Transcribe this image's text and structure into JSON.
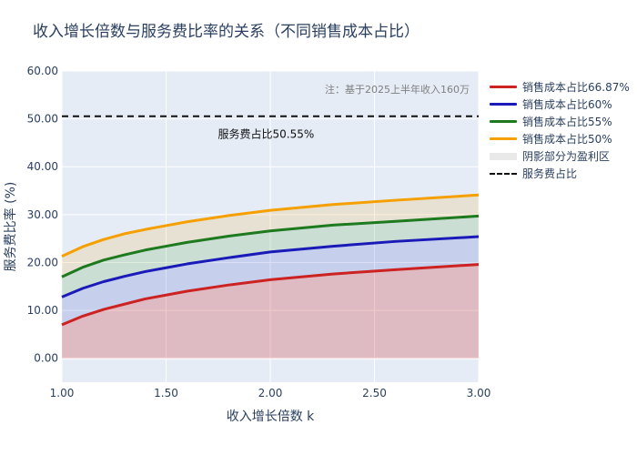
{
  "title": "收入增长倍数与服务费比率的关系（不同销售成本占比）",
  "colors": {
    "plot_bg": "#e5ecf6",
    "grid": "#ffffff",
    "line_6687": "#cc2222",
    "line_60": "#1a1ab8",
    "line_55": "#1e7a1e",
    "line_50": "#f5a000",
    "reference": "#111111"
  },
  "legend": [
    {
      "label": "销售成本占比66.87%",
      "kind": "line",
      "color": "#cc2222"
    },
    {
      "label": "销售成本占比60%",
      "kind": "line",
      "color": "#1a1ab8"
    },
    {
      "label": "销售成本占比55%",
      "kind": "line",
      "color": "#1e7a1e"
    },
    {
      "label": "销售成本占比50%",
      "kind": "line",
      "color": "#f5a000"
    },
    {
      "label": "阴影部分为盈利区",
      "kind": "fill",
      "color": "#e9e9e9"
    },
    {
      "label": "服务费占比",
      "kind": "dash",
      "color": "#111111"
    }
  ],
  "chart_data": {
    "type": "line",
    "xlabel": "收入增长倍数 k",
    "ylabel": "服务费比率 (%)",
    "xlim": [
      1.0,
      3.0
    ],
    "ylim": [
      -5,
      60
    ],
    "x_ticks": [
      "1.00",
      "1.50",
      "2.00",
      "2.50",
      "3.00"
    ],
    "y_ticks": [
      "0.00",
      "10.00",
      "20.00",
      "30.00",
      "40.00",
      "50.00",
      "60.00"
    ],
    "y_tick_values": [
      0,
      10,
      20,
      30,
      40,
      50,
      60
    ],
    "x_tick_values": [
      1.0,
      1.5,
      2.0,
      2.5,
      3.0
    ],
    "x": [
      1.0,
      1.1,
      1.2,
      1.3,
      1.4,
      1.5,
      1.6,
      1.8,
      2.0,
      2.3,
      2.6,
      3.0
    ],
    "series": [
      {
        "name": "销售成本占比66.87%",
        "color": "#cc2222",
        "fill": "rgba(205,60,60,0.28)",
        "values": [
          7.0,
          8.8,
          10.2,
          11.3,
          12.4,
          13.2,
          14.0,
          15.3,
          16.4,
          17.6,
          18.5,
          19.6
        ]
      },
      {
        "name": "销售成本占比60%",
        "color": "#1a1ab8",
        "fill": "rgba(40,60,190,0.16)",
        "values": [
          12.8,
          14.6,
          16.0,
          17.1,
          18.1,
          18.9,
          19.7,
          21.0,
          22.2,
          23.4,
          24.4,
          25.4
        ]
      },
      {
        "name": "销售成本占比55%",
        "color": "#1e7a1e",
        "fill": "rgba(60,150,40,0.16)",
        "values": [
          17.0,
          19.0,
          20.5,
          21.6,
          22.6,
          23.4,
          24.2,
          25.5,
          26.6,
          27.8,
          28.6,
          29.7
        ]
      },
      {
        "name": "销售成本占比50%",
        "color": "#f5a000",
        "fill": "rgba(245,170,30,0.16)",
        "values": [
          21.3,
          23.3,
          24.8,
          26.0,
          26.9,
          27.7,
          28.5,
          29.8,
          30.9,
          32.1,
          33.0,
          34.1
        ]
      }
    ],
    "reference_line": {
      "name": "服务费占比",
      "y": 50.55
    },
    "annotations": {
      "reference_label": "服务费占比50.55%",
      "reference_label_x": 1.98,
      "reference_label_y": 46,
      "note": "注：基于2025上半年收入160万"
    },
    "grid": true,
    "legend_position": "right"
  }
}
